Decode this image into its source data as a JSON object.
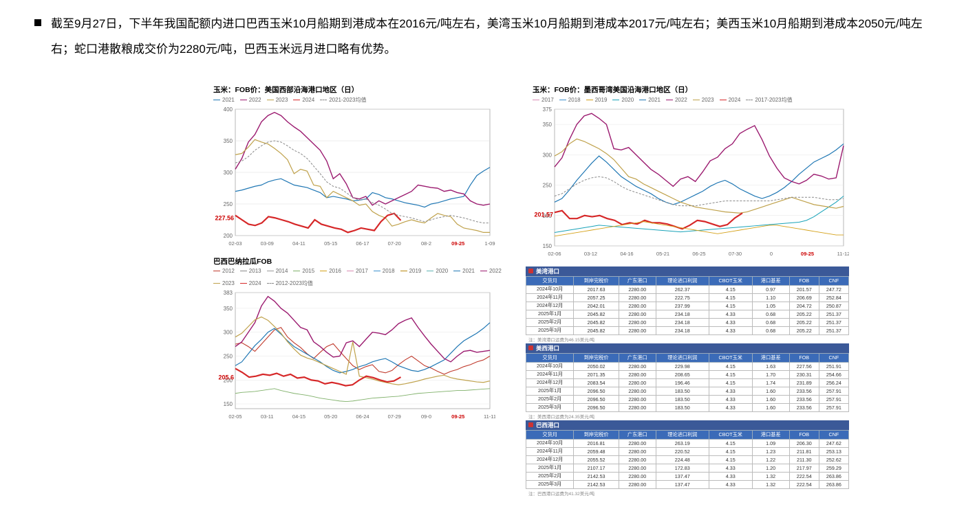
{
  "bullet": "截至9月27日，下半年我国配额内进口巴西玉米10月船期到港成本在2016元/吨左右，美湾玉米10月船期到港成本2017元/吨左右；美西玉米10月船期到港成本2050元/吨左右；蛇口港散粮成交价为2280元/吨，巴西玉米远月进口略有优势。",
  "chart_us_west": {
    "title": "玉米：FOB价：美国西部沿海港口地区（日）",
    "series": [
      {
        "name": "2021",
        "color": "#1f77b4"
      },
      {
        "name": "2022",
        "color": "#9b1a6f"
      },
      {
        "name": "2023",
        "color": "#bfa14a"
      },
      {
        "name": "2024",
        "color": "#d62728"
      },
      {
        "name": "2021-2023均值",
        "color": "#888888",
        "dash": "3,2"
      }
    ],
    "ylim": [
      200,
      400
    ],
    "yticks": [
      200,
      250,
      300,
      350,
      400
    ],
    "xticks": [
      "02-03",
      "03-09",
      "04-11",
      "05-15",
      "06-17",
      "07-20",
      "08-2",
      "09-25",
      "1-09"
    ],
    "point_label": "227.56",
    "background": "#ffffff",
    "grid": "#dcdcdc",
    "lines": {
      "2022": [
        305,
        322,
        348,
        360,
        380,
        390,
        395,
        390,
        380,
        372,
        365,
        355,
        345,
        335,
        318,
        290,
        298,
        282,
        260,
        258,
        262,
        248,
        255,
        250,
        255,
        260,
        265,
        270,
        280,
        278,
        276,
        275,
        270,
        272,
        268,
        266,
        255,
        250,
        248,
        250
      ],
      "2023": [
        328,
        330,
        340,
        352,
        348,
        345,
        338,
        330,
        320,
        298,
        305,
        302,
        280,
        278,
        260,
        270,
        265,
        260,
        255,
        248,
        250,
        238,
        232,
        228,
        215,
        218,
        222,
        225,
        222,
        220,
        228,
        235,
        232,
        230,
        218,
        212,
        210,
        208,
        205,
        205
      ],
      "2021": [
        270,
        272,
        275,
        278,
        280,
        285,
        288,
        290,
        285,
        280,
        278,
        276,
        272,
        268,
        260,
        262,
        260,
        258,
        255,
        256,
        258,
        268,
        265,
        260,
        258,
        255,
        252,
        250,
        248,
        245,
        250,
        252,
        255,
        258,
        260,
        262,
        280,
        295,
        302,
        308
      ],
      "avg": [
        315,
        318,
        325,
        335,
        342,
        348,
        350,
        348,
        342,
        335,
        330,
        322,
        310,
        298,
        285,
        278,
        275,
        268,
        260,
        256,
        258,
        252,
        248,
        242,
        235,
        232,
        230,
        228,
        225,
        222,
        225,
        228,
        230,
        232,
        230,
        228,
        225,
        222,
        220,
        220
      ],
      "2024": [
        232,
        225,
        218,
        216,
        220,
        230,
        228,
        225,
        222,
        218,
        215,
        212,
        225,
        218,
        215,
        212,
        210,
        205,
        208,
        212,
        210,
        208,
        222,
        232,
        235,
        224
      ]
    }
  },
  "chart_brazil": {
    "title": "巴西巴纳拉瓜FOB",
    "series": [
      {
        "name": "2012",
        "color": "#c0392b"
      },
      {
        "name": "2013",
        "color": "#888"
      },
      {
        "name": "2014",
        "color": "#999"
      },
      {
        "name": "2015",
        "color": "#7fb069"
      },
      {
        "name": "2016",
        "color": "#d4a017"
      },
      {
        "name": "2017",
        "color": "#d98cb3"
      },
      {
        "name": "2018",
        "color": "#3b8fce"
      },
      {
        "name": "2019",
        "color": "#b8860b"
      },
      {
        "name": "2020",
        "color": "#5fb3b3"
      },
      {
        "name": "2021",
        "color": "#1f77b4"
      },
      {
        "name": "2022",
        "color": "#9b1a6f"
      },
      {
        "name": "2023",
        "color": "#bfa14a"
      },
      {
        "name": "2024",
        "color": "#d62728"
      },
      {
        "name": "2012-2023均值",
        "color": "#888",
        "dash": "3,2"
      }
    ],
    "ylim": [
      140,
      383
    ],
    "yticks": [
      150,
      200,
      250,
      300,
      350,
      383
    ],
    "xticks": [
      "02-05",
      "03-11",
      "04-15",
      "05-20",
      "06-24",
      "07-29",
      "09-0",
      "09-25",
      "11-11"
    ],
    "point_label": "205.6",
    "lines": {
      "2022": [
        270,
        280,
        300,
        320,
        355,
        375,
        365,
        350,
        340,
        325,
        310,
        305,
        280,
        270,
        258,
        248,
        250,
        278,
        282,
        270,
        285,
        300,
        298,
        295,
        305,
        318,
        325,
        330,
        310,
        292,
        275,
        260,
        245,
        238,
        250,
        260,
        262,
        258,
        260,
        262
      ],
      "2012": [
        275,
        278,
        270,
        260,
        275,
        290,
        305,
        310,
        290,
        278,
        268,
        255,
        245,
        258,
        270,
        276,
        260,
        245,
        230,
        222,
        228,
        232,
        218,
        215,
        220,
        232,
        242,
        250,
        240,
        230,
        225,
        218,
        212,
        218,
        222,
        228,
        232,
        238,
        242,
        250
      ],
      "2021": [
        230,
        238,
        255,
        272,
        285,
        300,
        308,
        296,
        282,
        270,
        262,
        254,
        246,
        238,
        228,
        220,
        215,
        218,
        222,
        228,
        232,
        238,
        242,
        245,
        238,
        230,
        225,
        220,
        218,
        222,
        228,
        235,
        242,
        256,
        270,
        282,
        290,
        298,
        308,
        320
      ],
      "2023": [
        290,
        298,
        312,
        326,
        332,
        325,
        312,
        298,
        280,
        265,
        252,
        246,
        242,
        236,
        230,
        224,
        218,
        212,
        280,
        208,
        205,
        202,
        198,
        195,
        192,
        190,
        192,
        195,
        198,
        202,
        205,
        208,
        210,
        205,
        202,
        200,
        198,
        196,
        195,
        198
      ],
      "2024": [
        224,
        216,
        206,
        208,
        212,
        210,
        214,
        208,
        212,
        204,
        206,
        200,
        198,
        192,
        195,
        192,
        188,
        190,
        200,
        208,
        205,
        200,
        196,
        198,
        206
      ],
      "15_19": [
        172,
        174,
        175,
        176,
        178,
        180,
        182,
        178,
        175,
        172,
        170,
        168,
        165,
        162,
        160,
        158,
        156,
        155,
        156,
        158,
        160,
        162,
        163,
        164,
        165,
        166,
        168,
        170,
        172,
        173,
        174,
        175,
        176,
        177,
        178,
        178,
        179,
        180,
        181,
        182
      ]
    }
  },
  "chart_gulf": {
    "title": "玉米：FOB价：墨西哥湾美国沿海港口地区（日）",
    "series": [
      {
        "name": "2017",
        "color": "#d98cb3"
      },
      {
        "name": "2018",
        "color": "#3b8fce"
      },
      {
        "name": "2019",
        "color": "#d4a017"
      },
      {
        "name": "2020",
        "color": "#17a2b8"
      },
      {
        "name": "2021",
        "color": "#1f77b4"
      },
      {
        "name": "2022",
        "color": "#9b1a6f"
      },
      {
        "name": "2023",
        "color": "#bfa14a"
      },
      {
        "name": "2024",
        "color": "#d62728"
      },
      {
        "name": "2017-2023均值",
        "color": "#888",
        "dash": "3,2"
      }
    ],
    "ylim": [
      150,
      375
    ],
    "yticks": [
      150,
      200,
      250,
      300,
      350,
      375
    ],
    "xticks": [
      "02-06",
      "03-12",
      "04-16",
      "05-21",
      "06-25",
      "07-30",
      "0",
      "09-25",
      "11-12"
    ],
    "point_label": "201.57",
    "lines": {
      "2022": [
        280,
        295,
        325,
        350,
        364,
        368,
        360,
        350,
        310,
        308,
        312,
        300,
        288,
        276,
        268,
        258,
        248,
        260,
        264,
        256,
        272,
        290,
        296,
        310,
        318,
        335,
        342,
        348,
        325,
        298,
        278,
        262,
        256,
        252,
        258,
        268,
        265,
        260,
        262,
        315
      ],
      "2023": [
        298,
        305,
        318,
        326,
        322,
        316,
        310,
        302,
        292,
        278,
        264,
        260,
        252,
        246,
        240,
        234,
        228,
        222,
        218,
        214,
        212,
        210,
        208,
        206,
        205,
        204,
        206,
        210,
        214,
        218,
        222,
        226,
        230,
        226,
        222,
        218,
        216,
        214,
        212,
        215
      ],
      "2021": [
        222,
        228,
        242,
        258,
        272,
        286,
        298,
        288,
        276,
        264,
        256,
        248,
        242,
        236,
        228,
        222,
        218,
        222,
        228,
        234,
        240,
        248,
        254,
        258,
        252,
        244,
        238,
        232,
        228,
        232,
        238,
        246,
        256,
        268,
        278,
        288,
        294,
        300,
        308,
        318
      ],
      "2024": [
        205,
        208,
        195,
        195,
        200,
        198,
        200,
        195,
        192,
        185,
        188,
        186,
        192,
        188,
        188,
        186,
        182,
        178,
        184,
        192,
        190,
        186,
        182,
        185,
        196,
        204
      ],
      "2020": [
        172,
        174,
        176,
        178,
        180,
        182,
        184,
        183,
        182,
        181,
        180,
        179,
        178,
        177,
        176,
        175,
        174,
        173,
        174,
        175,
        176,
        177,
        178,
        179,
        180,
        181,
        182,
        183,
        184,
        185,
        186,
        187,
        188,
        189,
        192,
        198,
        206,
        214,
        222,
        232
      ],
      "17_19": [
        166,
        168,
        170,
        172,
        174,
        176,
        178,
        180,
        182,
        184,
        186,
        188,
        190,
        188,
        186,
        184,
        182,
        180,
        178,
        176,
        174,
        172,
        170,
        172,
        174,
        176,
        178,
        180,
        182,
        184,
        184,
        182,
        180,
        178,
        176,
        174,
        172,
        170,
        168,
        168
      ],
      "avg": [
        232,
        236,
        244,
        252,
        258,
        262,
        264,
        262,
        256,
        248,
        242,
        238,
        234,
        230,
        226,
        222,
        218,
        216,
        216,
        216,
        218,
        220,
        222,
        224,
        224,
        224,
        224,
        224,
        224,
        224,
        226,
        228,
        230,
        230,
        230,
        230,
        228,
        226,
        226,
        228
      ]
    }
  },
  "tbl_headers": [
    "交货月",
    "到岸完税价",
    "广东港口",
    "理论进口利润",
    "CBOT玉米",
    "港口基差",
    "FOB",
    "CNF"
  ],
  "tbl_gulf": {
    "title": "美湾港口",
    "rows": [
      [
        "2024年10月",
        "2017.63",
        "2280.00",
        "262.37",
        "4.15",
        "0.97",
        "201.57",
        "247.72"
      ],
      [
        "2024年11月",
        "2057.25",
        "2280.00",
        "222.75",
        "4.15",
        "1.10",
        "206.69",
        "252.84"
      ],
      [
        "2024年12月",
        "2042.01",
        "2280.00",
        "237.99",
        "4.15",
        "1.05",
        "204.72",
        "250.87"
      ],
      [
        "2025年1月",
        "2045.82",
        "2280.00",
        "234.18",
        "4.33",
        "0.68",
        "205.22",
        "251.37"
      ],
      [
        "2025年2月",
        "2045.82",
        "2280.00",
        "234.18",
        "4.33",
        "0.68",
        "205.22",
        "251.37"
      ],
      [
        "2025年3月",
        "2045.82",
        "2280.00",
        "234.18",
        "4.33",
        "0.68",
        "205.22",
        "251.37"
      ]
    ],
    "note": "注：美湾港口运费为46.15美元/吨"
  },
  "tbl_west": {
    "title": "美西港口",
    "rows": [
      [
        "2024年10月",
        "2050.02",
        "2280.00",
        "229.98",
        "4.15",
        "1.63",
        "227.56",
        "251.91"
      ],
      [
        "2024年11月",
        "2071.35",
        "2280.00",
        "208.65",
        "4.15",
        "1.70",
        "230.31",
        "254.66"
      ],
      [
        "2024年12月",
        "2083.54",
        "2280.00",
        "196.46",
        "4.15",
        "1.74",
        "231.89",
        "256.24"
      ],
      [
        "2025年1月",
        "2096.50",
        "2280.00",
        "183.50",
        "4.33",
        "1.60",
        "233.56",
        "257.91"
      ],
      [
        "2025年2月",
        "2096.50",
        "2280.00",
        "183.50",
        "4.33",
        "1.60",
        "233.56",
        "257.91"
      ],
      [
        "2025年3月",
        "2096.50",
        "2280.00",
        "183.50",
        "4.33",
        "1.60",
        "233.56",
        "257.91"
      ]
    ],
    "note": "注：美西港口运费为24.35美元/吨"
  },
  "tbl_brazil": {
    "title": "巴西港口",
    "rows": [
      [
        "2024年10月",
        "2016.81",
        "2280.00",
        "263.19",
        "4.15",
        "1.09",
        "206.30",
        "247.62"
      ],
      [
        "2024年11月",
        "2059.48",
        "2280.00",
        "220.52",
        "4.15",
        "1.23",
        "211.81",
        "253.13"
      ],
      [
        "2024年12月",
        "2055.52",
        "2280.00",
        "224.48",
        "4.15",
        "1.22",
        "211.30",
        "252.62"
      ],
      [
        "2025年1月",
        "2107.17",
        "2280.00",
        "172.83",
        "4.33",
        "1.20",
        "217.97",
        "259.29"
      ],
      [
        "2025年2月",
        "2142.53",
        "2280.00",
        "137.47",
        "4.33",
        "1.32",
        "222.54",
        "263.86"
      ],
      [
        "2025年3月",
        "2142.53",
        "2280.00",
        "137.47",
        "4.33",
        "1.32",
        "222.54",
        "263.86"
      ]
    ],
    "note": "注：巴西港口运费为41.32美元/吨"
  }
}
